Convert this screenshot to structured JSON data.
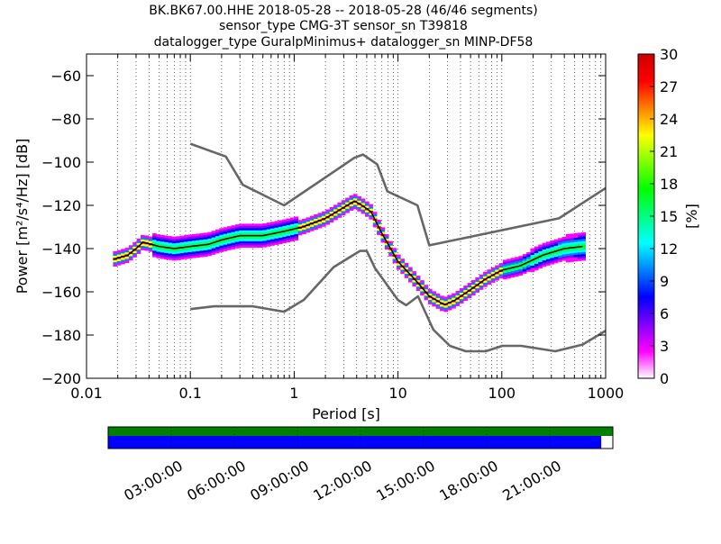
{
  "chart_data": {
    "type": "scatter",
    "title_lines": [
      "BK.BK67.00.HHE   2018-05-28 -- 2018-05-28  (46/46 segments)",
      "sensor_type CMG-3T sensor_sn T39818",
      "datalogger_type GuralpMinimus+ datalogger_sn MINP-DF58"
    ],
    "xlabel": "Period [s]",
    "ylabel": "Power [m²/s⁴/Hz] [dB]",
    "x_scale": "log",
    "xlim": [
      0.01,
      1000
    ],
    "ylim": [
      -200,
      -50
    ],
    "xticks": [
      {
        "v": 0.01,
        "label": "0.01"
      },
      {
        "v": 0.1,
        "label": "0.1"
      },
      {
        "v": 1,
        "label": "1"
      },
      {
        "v": 10,
        "label": "10"
      },
      {
        "v": 100,
        "label": "100"
      },
      {
        "v": 1000,
        "label": "1000"
      }
    ],
    "yticks": [
      -200,
      -180,
      -160,
      -140,
      -120,
      -100,
      -80,
      -60
    ],
    "grid": "dotted-vertical",
    "colorbar": {
      "label": "[%]",
      "range": [
        0,
        30
      ],
      "ticks": [
        0,
        3,
        6,
        9,
        12,
        15,
        18,
        21,
        24,
        27,
        30
      ],
      "colors": [
        "#ffffff",
        "#ff00ff",
        "#8000ff",
        "#0000ff",
        "#0080ff",
        "#00ffff",
        "#00ff80",
        "#00ff00",
        "#80ff00",
        "#ffff00",
        "#ff8000",
        "#ff0000",
        "#cc0000"
      ]
    },
    "series": [
      {
        "name": "",
        "role": "mode-line",
        "color": "#000000",
        "x": [
          0.018,
          0.025,
          0.03,
          0.035,
          0.05,
          0.07,
          0.1,
          0.15,
          0.2,
          0.3,
          0.5,
          0.8,
          1.2,
          2.0,
          3.0,
          3.8,
          4.5,
          5.5,
          7.0,
          10,
          15,
          20,
          28,
          35,
          50,
          70,
          100,
          150,
          250,
          400,
          600
        ],
        "y": [
          -145,
          -143,
          -140,
          -137,
          -139,
          -140,
          -139,
          -138,
          -136,
          -134,
          -134,
          -132,
          -130,
          -126,
          -121,
          -118,
          -120,
          -123,
          -133,
          -146,
          -155,
          -162,
          -166,
          -164,
          -159,
          -154,
          -150,
          -148,
          -143,
          -140,
          -139
        ]
      },
      {
        "name": "",
        "role": "high-noise-model",
        "color": "#666666",
        "x": [
          0.1,
          0.22,
          0.32,
          0.8,
          3.8,
          4.6,
          6.3,
          7.9,
          15.4,
          20,
          354.8,
          1000
        ],
        "y": [
          -91.5,
          -97.4,
          -110.5,
          -120,
          -98,
          -96.5,
          -101,
          -113.5,
          -120,
          -138.5,
          -126,
          -112
        ]
      },
      {
        "name": "",
        "role": "low-noise-model",
        "color": "#666666",
        "x": [
          0.1,
          0.17,
          0.4,
          0.8,
          1.24,
          2.4,
          4.3,
          5.0,
          6.0,
          10,
          12,
          15.6,
          21.9,
          31.6,
          45,
          70,
          101,
          154,
          328,
          600,
          1000
        ],
        "y": [
          -168,
          -166.7,
          -166.7,
          -169.2,
          -163.7,
          -148.6,
          -141.1,
          -141.1,
          -149,
          -163.8,
          -166.2,
          -162.1,
          -177.5,
          -185,
          -187.5,
          -187.5,
          -185,
          -185,
          -187.5,
          -184.4,
          -178
        ]
      }
    ]
  },
  "timeline": {
    "tick_labels": [
      "03:00:00",
      "06:00:00",
      "09:00:00",
      "12:00:00",
      "15:00:00",
      "18:00:00",
      "21:00:00"
    ],
    "data_coverage_fraction": 0.977,
    "top_bar_color": "#008000",
    "bottom_bar_color": "#0000ff"
  }
}
